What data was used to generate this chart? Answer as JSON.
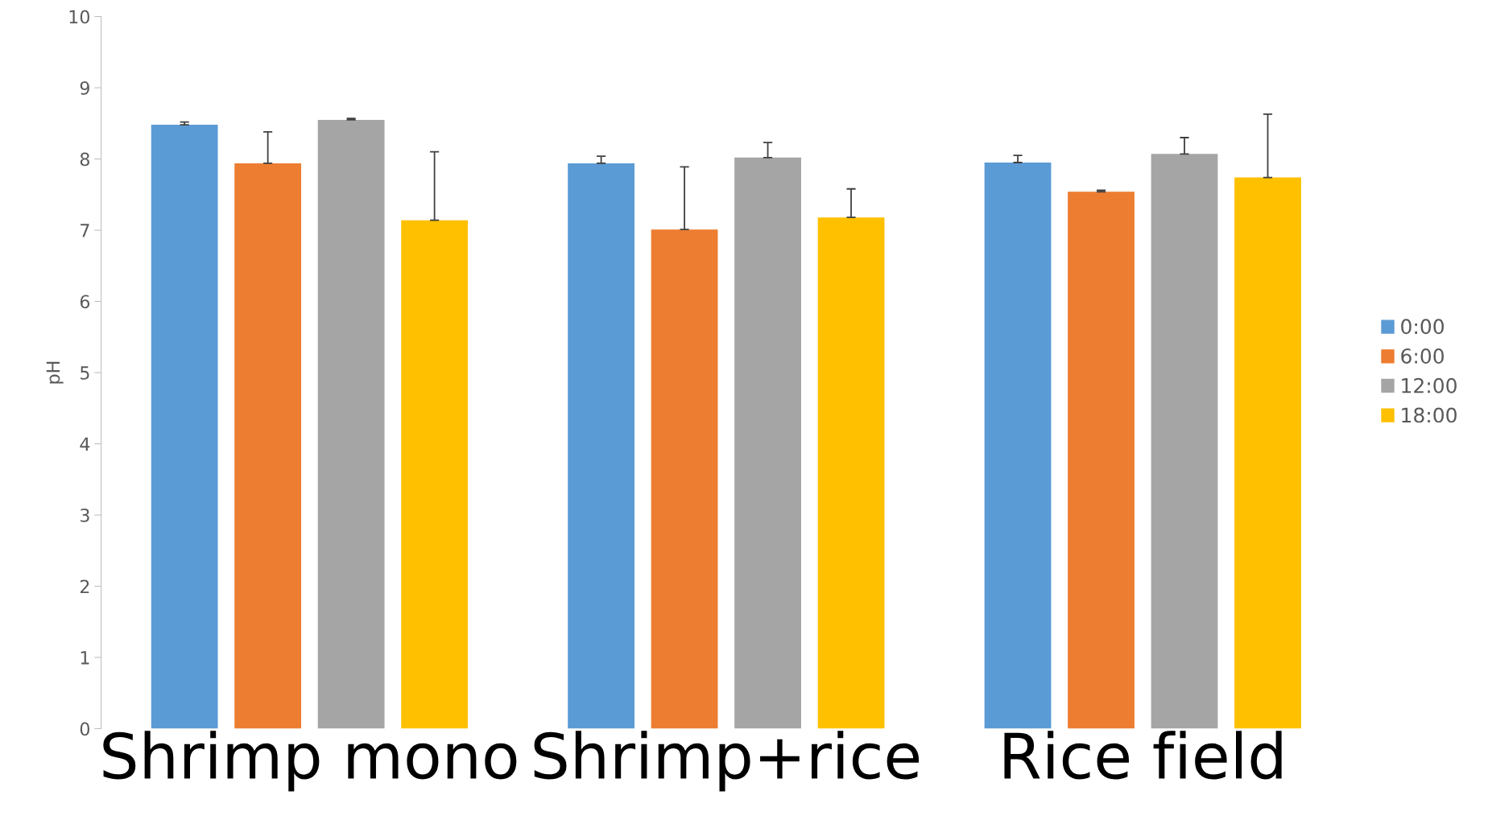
{
  "chart_data": {
    "type": "bar",
    "ylabel": "pH",
    "categories": [
      "Shrimp mono",
      "Shrimp+rice",
      "Rice field"
    ],
    "series": [
      {
        "name": "0:00",
        "color": "#5b9bd5",
        "values": [
          8.48,
          7.94,
          7.95
        ],
        "errors": [
          [
            8.48,
            8.52
          ],
          [
            7.94,
            8.04
          ],
          [
            7.95,
            8.05
          ]
        ]
      },
      {
        "name": "6:00",
        "color": "#ed7d31",
        "values": [
          7.94,
          7.01,
          7.54
        ],
        "errors": [
          [
            7.94,
            8.38
          ],
          [
            7.01,
            7.89
          ],
          [
            7.54,
            7.56
          ]
        ]
      },
      {
        "name": "12:00",
        "color": "#a5a5a5",
        "values": [
          8.55,
          8.02,
          8.07
        ],
        "errors": [
          [
            8.55,
            8.57
          ],
          [
            8.02,
            8.23
          ],
          [
            8.07,
            8.3
          ]
        ]
      },
      {
        "name": "18:00",
        "color": "#ffc000",
        "values": [
          7.14,
          7.18,
          7.74
        ],
        "errors": [
          [
            7.14,
            8.1
          ],
          [
            7.18,
            7.58
          ],
          [
            7.74,
            8.63
          ]
        ]
      }
    ],
    "ylim": [
      0,
      10
    ],
    "yticks": [
      0,
      1,
      2,
      3,
      4,
      5,
      6,
      7,
      8,
      9,
      10
    ],
    "grid": false,
    "legend": "right"
  }
}
